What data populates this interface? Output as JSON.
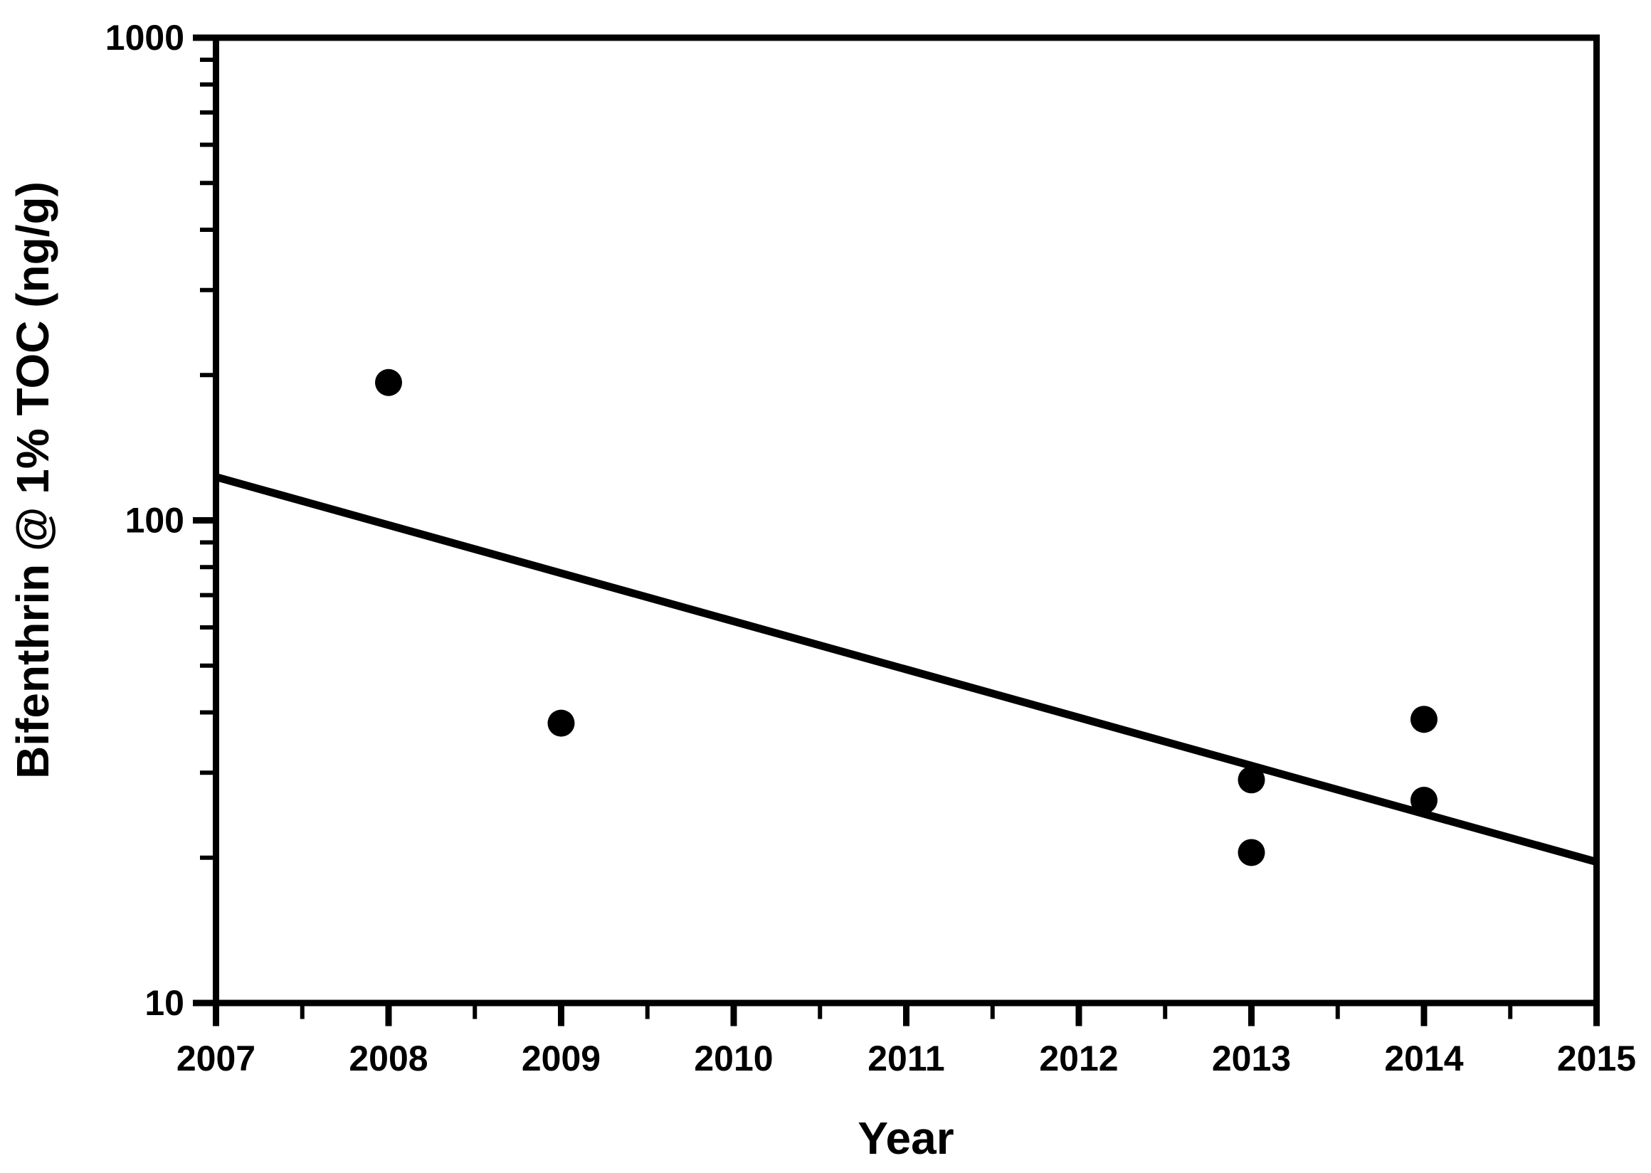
{
  "figure": {
    "background": "#ffffff",
    "ink": "#000000"
  },
  "chart_data": {
    "type": "scatter",
    "title": "",
    "xlabel": "Year",
    "ylabel": "Bifenthrin @ 1% TOC (ng/g)",
    "x_scale": "linear",
    "y_scale": "log",
    "xlim": [
      2007,
      2015
    ],
    "ylim": [
      10,
      1000
    ],
    "x_major_ticks": [
      2007,
      2008,
      2009,
      2010,
      2011,
      2012,
      2013,
      2014,
      2015
    ],
    "x_tick_labels": [
      "2007",
      "2008",
      "2009",
      "2010",
      "2011",
      "2012",
      "2013",
      "2014",
      "2015"
    ],
    "x_minor_ticks": [
      2007.5,
      2008.5,
      2009.5,
      2010.5,
      2011.5,
      2012.5,
      2013.5,
      2014.5
    ],
    "y_major_ticks": [
      10,
      100,
      1000
    ],
    "y_tick_labels": [
      "10",
      "100",
      "1000"
    ],
    "y_minor_ticks": [
      20,
      30,
      40,
      50,
      60,
      70,
      80,
      90,
      200,
      300,
      400,
      500,
      600,
      700,
      800,
      900
    ],
    "grid": false,
    "legend": null,
    "marker": {
      "shape": "circle",
      "radius_px": 19,
      "color": "#000000"
    },
    "points": [
      {
        "x": 2008,
        "y": 193
      },
      {
        "x": 2009,
        "y": 38
      },
      {
        "x": 2013,
        "y": 29
      },
      {
        "x": 2013,
        "y": 20.5
      },
      {
        "x": 2014,
        "y": 38.7
      },
      {
        "x": 2014,
        "y": 26.3
      }
    ],
    "trend_line": {
      "x1": 2007,
      "y1": 123,
      "x2": 2015,
      "y2": 19.6
    }
  }
}
